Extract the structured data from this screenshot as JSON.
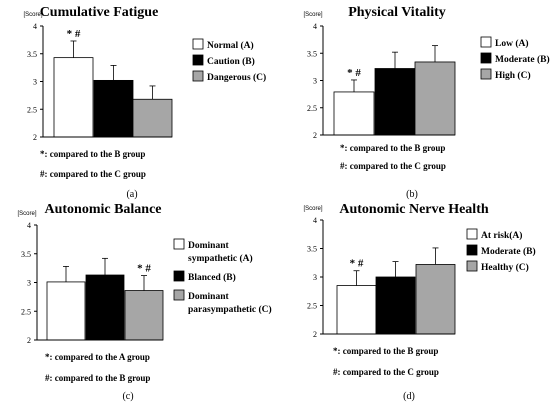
{
  "chart_data": [
    {
      "type": "bar",
      "panel_caption": "(a)",
      "title": "Cumulative Fatigue",
      "ylabel": "[Score]",
      "ylim": [
        2,
        4
      ],
      "yticks": [
        "2",
        "2.5",
        "3",
        "3.5",
        "4"
      ],
      "categories": [
        "Normal (A)",
        "Caution (B)",
        "Dangerous (C)"
      ],
      "values": [
        3.43,
        3.02,
        2.68
      ],
      "errors": [
        0.3,
        0.27,
        0.24
      ],
      "colors": [
        "#ffffff",
        "#000000",
        "#a6a6a6"
      ],
      "significance": [
        "* #",
        "",
        ""
      ],
      "notes": [
        "*: compared to the B group",
        "#: compared to the C group"
      ]
    },
    {
      "type": "bar",
      "panel_caption": "(b)",
      "title": "Physical Vitality",
      "ylabel": "[Score]",
      "ylim": [
        2,
        4
      ],
      "yticks": [
        "2",
        "2.5",
        "3",
        "3.5",
        "4"
      ],
      "categories": [
        "Low (A)",
        "Moderate (B)",
        "High (C)"
      ],
      "values": [
        2.79,
        3.22,
        3.34
      ],
      "errors": [
        0.22,
        0.3,
        0.3
      ],
      "colors": [
        "#ffffff",
        "#000000",
        "#a6a6a6"
      ],
      "significance": [
        "* #",
        "",
        ""
      ],
      "notes": [
        "*: compared to the B group",
        "#: compared to the C group"
      ]
    },
    {
      "type": "bar",
      "panel_caption": "(c)",
      "title": "Autonomic Balance",
      "ylabel": "[Score]",
      "ylim": [
        2,
        4
      ],
      "yticks": [
        "2",
        "2.5",
        "3",
        "3.5",
        "4"
      ],
      "categories": [
        "Dominant sympathetic (A)",
        "Blanced (B)",
        "Dominant parasympathetic (C)"
      ],
      "legend_lines": [
        [
          "Dominant",
          "sympathetic (A)"
        ],
        [
          "Blanced (B)"
        ],
        [
          "Dominant",
          "parasympathetic (C)"
        ]
      ],
      "values": [
        3.01,
        3.13,
        2.86
      ],
      "errors": [
        0.27,
        0.29,
        0.26
      ],
      "colors": [
        "#ffffff",
        "#000000",
        "#a6a6a6"
      ],
      "significance": [
        "",
        "",
        "* #"
      ],
      "notes": [
        "*: compared to the A group",
        "#: compared to the B group"
      ]
    },
    {
      "type": "bar",
      "panel_caption": "(d)",
      "title": "Autonomic Nerve Health",
      "ylabel": "[Score]",
      "ylim": [
        2,
        4
      ],
      "yticks": [
        "2",
        "2.5",
        "3",
        "3.5",
        "4"
      ],
      "categories": [
        "At risk(A)",
        "Moderate (B)",
        "Healthy (C)"
      ],
      "values": [
        2.85,
        3.0,
        3.22
      ],
      "errors": [
        0.26,
        0.27,
        0.29
      ],
      "colors": [
        "#ffffff",
        "#000000",
        "#a6a6a6"
      ],
      "significance": [
        "* #",
        "",
        ""
      ],
      "notes": [
        "*: compared to the B group",
        "#: compared to the C group"
      ]
    }
  ]
}
